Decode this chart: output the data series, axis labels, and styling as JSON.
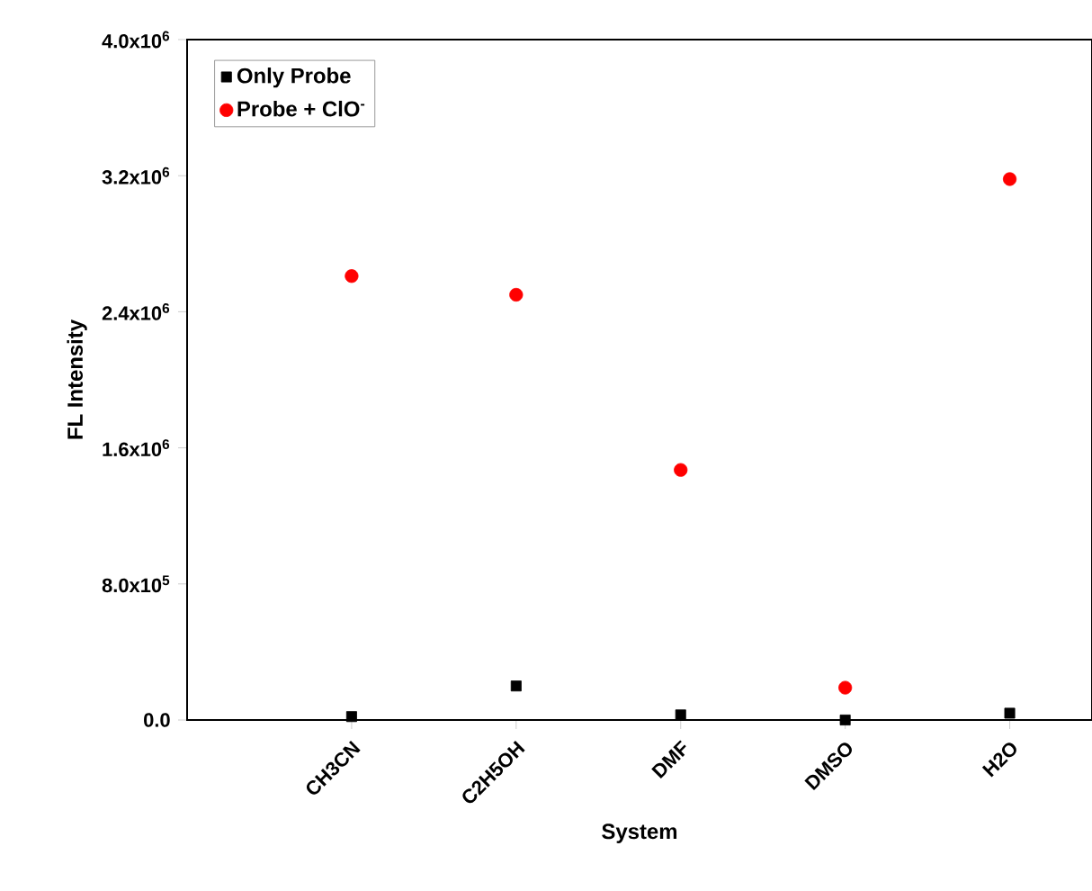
{
  "chart_data": {
    "type": "scatter",
    "xlabel": "System",
    "ylabel": "FL Intensity",
    "categories": [
      "CH3CN",
      "C2H5OH",
      "DMF",
      "DMSO",
      "H2O"
    ],
    "series": [
      {
        "name": "Only  Probe",
        "color": "#000000",
        "marker": "square",
        "values": [
          20000,
          200000,
          30000,
          0,
          40000
        ]
      },
      {
        "name": "Probe + ClO$^{-}$",
        "color": "#ff0000",
        "marker": "circle",
        "values": [
          2610000,
          2500000,
          1470000,
          190000,
          3180000
        ]
      }
    ],
    "ylim": [
      0,
      4000000
    ],
    "yticks": [
      {
        "value": 0,
        "label": "0.0"
      },
      {
        "value": 800000,
        "label": "8.0x10$^{5}$"
      },
      {
        "value": 1600000,
        "label": "1.6x10$^{6}$"
      },
      {
        "value": 2400000,
        "label": "2.4x10$^{6}$"
      },
      {
        "value": 3200000,
        "label": "3.2x10$^{6}$"
      },
      {
        "value": 4000000,
        "label": "4.0x10$^{6}$"
      }
    ],
    "grid": false,
    "legend": "top left"
  }
}
